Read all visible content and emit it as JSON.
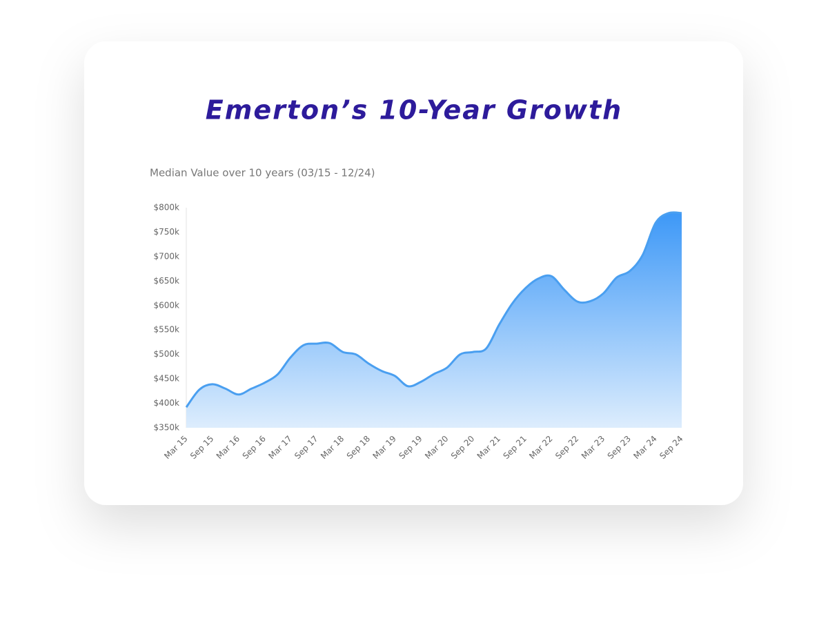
{
  "chart_data": {
    "type": "area",
    "title": "Emerton’s 10-Year Growth",
    "subtitle": "Median Value over 10 years (03/15 - 12/24)",
    "categories": [
      "Mar 15",
      null,
      "Sep 15",
      null,
      "Mar 16",
      null,
      "Sep 16",
      null,
      "Mar 17",
      null,
      "Sep 17",
      null,
      "Mar 18",
      null,
      "Sep 18",
      null,
      "Mar 19",
      null,
      "Sep 19",
      null,
      "Mar 20",
      null,
      "Sep 20",
      null,
      "Mar 21",
      null,
      "Sep 21",
      null,
      "Mar 22",
      null,
      "Sep 22",
      null,
      "Mar 23",
      null,
      "Sep 23",
      null,
      "Mar 24",
      null,
      "Sep 24"
    ],
    "values": [
      392,
      428,
      439,
      430,
      418,
      430,
      442,
      459,
      494,
      519,
      522,
      523,
      505,
      500,
      481,
      466,
      456,
      435,
      444,
      460,
      473,
      500,
      505,
      512,
      561,
      604,
      635,
      655,
      660,
      632,
      608,
      609,
      625,
      657,
      670,
      703,
      769,
      789,
      789
    ],
    "color": "#4a9ff0",
    "ylim": [
      350,
      800
    ],
    "yticks": [
      {
        "value": 350,
        "label": "$350k"
      },
      {
        "value": 400,
        "label": "$400k"
      },
      {
        "value": 450,
        "label": "$450k"
      },
      {
        "value": 500,
        "label": "$500k"
      },
      {
        "value": 550,
        "label": "$550k"
      },
      {
        "value": 600,
        "label": "$600k"
      },
      {
        "value": 650,
        "label": "$650k"
      },
      {
        "value": 700,
        "label": "$700k"
      },
      {
        "value": 750,
        "label": "$750k"
      },
      {
        "value": 800,
        "label": "$800k"
      }
    ],
    "grid": false
  }
}
